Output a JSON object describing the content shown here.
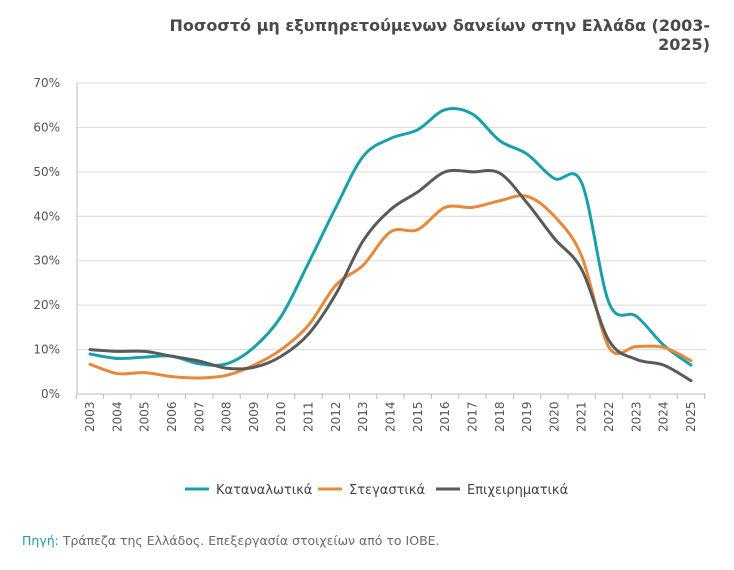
{
  "chart_data": {
    "type": "line",
    "title": "Ποσοστό μη εξυπηρετούμενων δανείων στην Ελλάδα (2003-2025)",
    "categories": [
      "2003",
      "2004",
      "2005",
      "2006",
      "2007",
      "2008",
      "2009",
      "2010",
      "2011",
      "2012",
      "2013",
      "2014",
      "2015",
      "2016",
      "2017",
      "2018",
      "2019",
      "2020",
      "2021",
      "2022",
      "2023",
      "2024",
      "2025"
    ],
    "yticks": [
      "0%",
      "10%",
      "20%",
      "30%",
      "40%",
      "50%",
      "60%",
      "70%"
    ],
    "ylim": [
      0,
      70
    ],
    "grid": true,
    "legend": "bottom",
    "series": [
      {
        "name": "Καταναλωτικά",
        "color": "#1aa0ad",
        "values": [
          9,
          8,
          8.3,
          8.5,
          6.8,
          6.8,
          10.5,
          17.5,
          29.5,
          42,
          53.5,
          57.5,
          59.5,
          64,
          63,
          57,
          54,
          48.5,
          47.5,
          20.5,
          17.5,
          11,
          6.5
        ]
      },
      {
        "name": "Στεγαστικά",
        "color": "#e8883a",
        "values": [
          6.7,
          4.6,
          4.8,
          3.9,
          3.6,
          4.2,
          6.5,
          10,
          15.5,
          24.5,
          29,
          36.5,
          37,
          42,
          42,
          43.5,
          44.5,
          40,
          31,
          10.5,
          10.7,
          10.5,
          7.5
        ]
      },
      {
        "name": "Επιχειρηματικά",
        "color": "#5a5a5a",
        "values": [
          10,
          9.6,
          9.6,
          8.5,
          7.4,
          5.8,
          6,
          8.5,
          13.5,
          22.5,
          34.5,
          41.5,
          45.5,
          50,
          50,
          49.7,
          43,
          35,
          28,
          12,
          7.8,
          6.5,
          3
        ]
      }
    ]
  },
  "footer": {
    "source_label": "Πηγή:",
    "source_text": " Τράπεζα της Ελλάδος. Επεξεργασία στοιχείων από το ΙΟΒΕ."
  }
}
